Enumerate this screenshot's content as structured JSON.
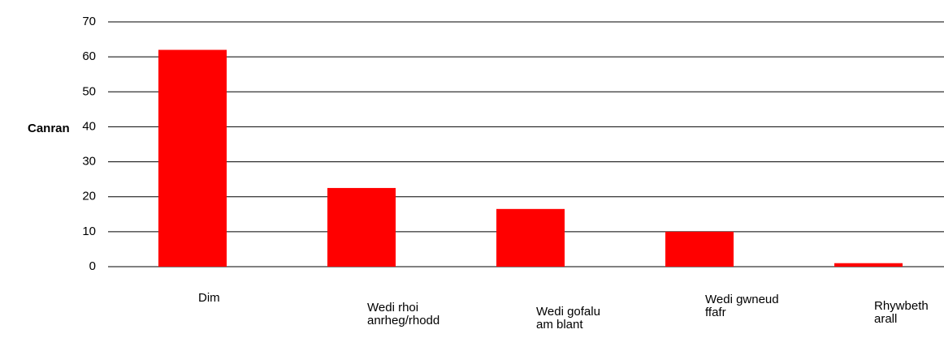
{
  "chart_data": {
    "type": "bar",
    "y_label": "Canran",
    "categories": [
      "Dim",
      "Wedi rhoi anrheg/rhodd",
      "Wedi gofalu am blant",
      "Wedi gwneud ffafr",
      "Rhywbeth arall"
    ],
    "values": [
      62,
      22.5,
      16.5,
      10,
      1
    ],
    "color": "#ff0000",
    "ylim": [
      0,
      70
    ],
    "yticks": [
      0,
      10,
      20,
      30,
      40,
      50,
      60,
      70
    ],
    "grid": true
  }
}
